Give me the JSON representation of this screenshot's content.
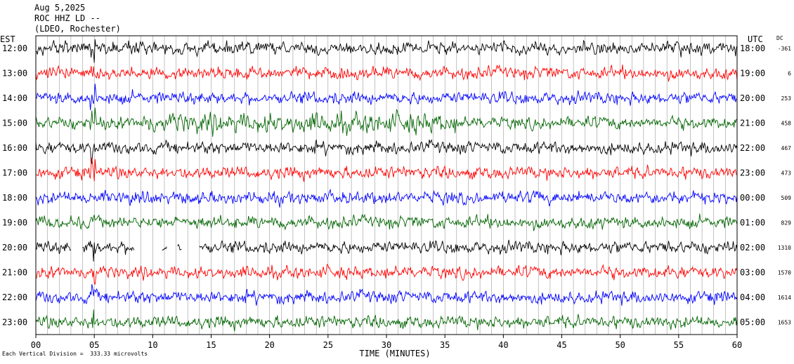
{
  "header": {
    "date": "Aug 5,2025",
    "station": "ROC HHZ LD --",
    "network": "(LDEO, Rochester)"
  },
  "axes": {
    "left_zone": "EST",
    "right_zone": "UTC",
    "dc_label": "DC",
    "xlabel": "TIME (MINUTES)",
    "x_ticks": [
      "00",
      "05",
      "10",
      "15",
      "20",
      "25",
      "30",
      "35",
      "40",
      "45",
      "50",
      "55",
      "60"
    ]
  },
  "footer": {
    "scale_note": "Each Vertical Division =  333.33 microvolts"
  },
  "colors": {
    "black": "#000000",
    "red": "#ff0000",
    "blue": "#0000ff",
    "green": "#006400"
  },
  "chart_data": {
    "type": "line",
    "title": "",
    "xlabel": "TIME (MINUTES)",
    "ylabel": "",
    "xlim": [
      0,
      60
    ],
    "grid": "vertical lines every minute",
    "rows": [
      {
        "est": "12:00",
        "utc": "18:00",
        "dc": "-361",
        "color": "black"
      },
      {
        "est": "13:00",
        "utc": "19:00",
        "dc": "6",
        "color": "red"
      },
      {
        "est": "14:00",
        "utc": "20:00",
        "dc": "253",
        "color": "blue"
      },
      {
        "est": "15:00",
        "utc": "21:00",
        "dc": "458",
        "color": "green"
      },
      {
        "est": "16:00",
        "utc": "22:00",
        "dc": "467",
        "color": "black"
      },
      {
        "est": "17:00",
        "utc": "23:00",
        "dc": "473",
        "color": "red"
      },
      {
        "est": "18:00",
        "utc": "00:00",
        "dc": "509",
        "color": "blue"
      },
      {
        "est": "19:00",
        "utc": "01:00",
        "dc": "829",
        "color": "green"
      },
      {
        "est": "20:00",
        "utc": "02:00",
        "dc": "1310",
        "color": "black"
      },
      {
        "est": "21:00",
        "utc": "03:00",
        "dc": "1570",
        "color": "red"
      },
      {
        "est": "22:00",
        "utc": "04:00",
        "dc": "1614",
        "color": "blue"
      },
      {
        "est": "23:00",
        "utc": "05:00",
        "dc": "1653",
        "color": "green"
      }
    ]
  }
}
